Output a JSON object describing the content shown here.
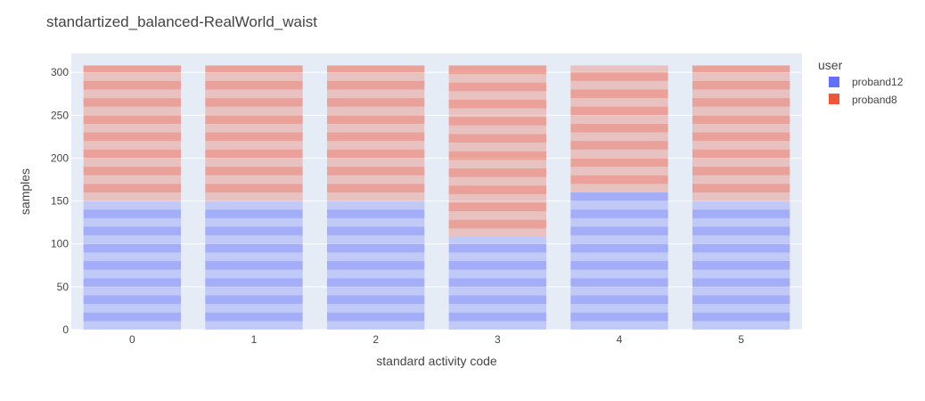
{
  "chart_data": {
    "type": "bar",
    "barmode": "stack",
    "title": "standartized_balanced-RealWorld_waist",
    "xlabel": "standard activity code",
    "ylabel": "samples",
    "categories": [
      "0",
      "1",
      "2",
      "3",
      "4",
      "5"
    ],
    "ylim": [
      0,
      322
    ],
    "yticks": [
      0,
      50,
      100,
      150,
      200,
      250,
      300
    ],
    "grid": true,
    "legend": {
      "title": "user",
      "placement": "right"
    },
    "series": [
      {
        "name": "proband12",
        "color": "#636efa",
        "values": [
          150,
          150,
          150,
          108,
          160,
          150
        ]
      },
      {
        "name": "proband8",
        "color": "#ef553b",
        "values": [
          158,
          158,
          158,
          200,
          148,
          158
        ]
      }
    ]
  }
}
